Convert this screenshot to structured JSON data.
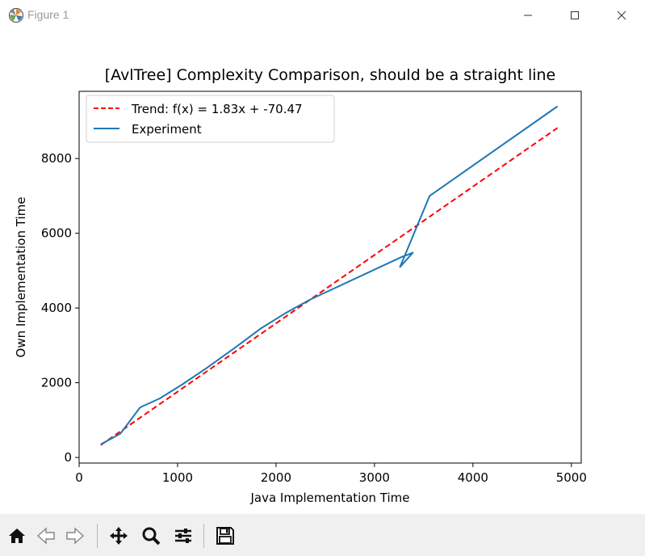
{
  "window": {
    "title": "Figure 1"
  },
  "chart_data": {
    "type": "line",
    "title": "[AvlTree] Complexity Comparison, should be a straight line",
    "xlabel": "Java Implementation Time",
    "ylabel": "Own Implementation Time",
    "xlim": [
      0,
      5100
    ],
    "ylim": [
      -150,
      9800
    ],
    "xticks": [
      0,
      1000,
      2000,
      3000,
      4000,
      5000
    ],
    "yticks": [
      0,
      2000,
      4000,
      6000,
      8000
    ],
    "xtick_labels": [
      "0",
      "1000",
      "2000",
      "3000",
      "4000",
      "5000"
    ],
    "ytick_labels": [
      "0",
      "2000",
      "4000",
      "6000",
      "8000"
    ],
    "legend_position": "top-left",
    "grid": false,
    "series": [
      {
        "name": "Trend: f(x) = 1.83x + -70.47",
        "style": "dashed",
        "color": "#ff0000",
        "x": [
          220,
          4860
        ],
        "y": [
          332,
          8823
        ]
      },
      {
        "name": "Experiment",
        "style": "solid",
        "color": "#1f77b4",
        "x": [
          220,
          420,
          620,
          820,
          1050,
          1300,
          1600,
          1850,
          2100,
          2350,
          3270,
          3390,
          3260,
          3560,
          4860
        ],
        "y": [
          350,
          640,
          1340,
          1580,
          1960,
          2400,
          2970,
          3460,
          3870,
          4230,
          5360,
          5480,
          5100,
          7000,
          9400
        ]
      }
    ]
  }
}
